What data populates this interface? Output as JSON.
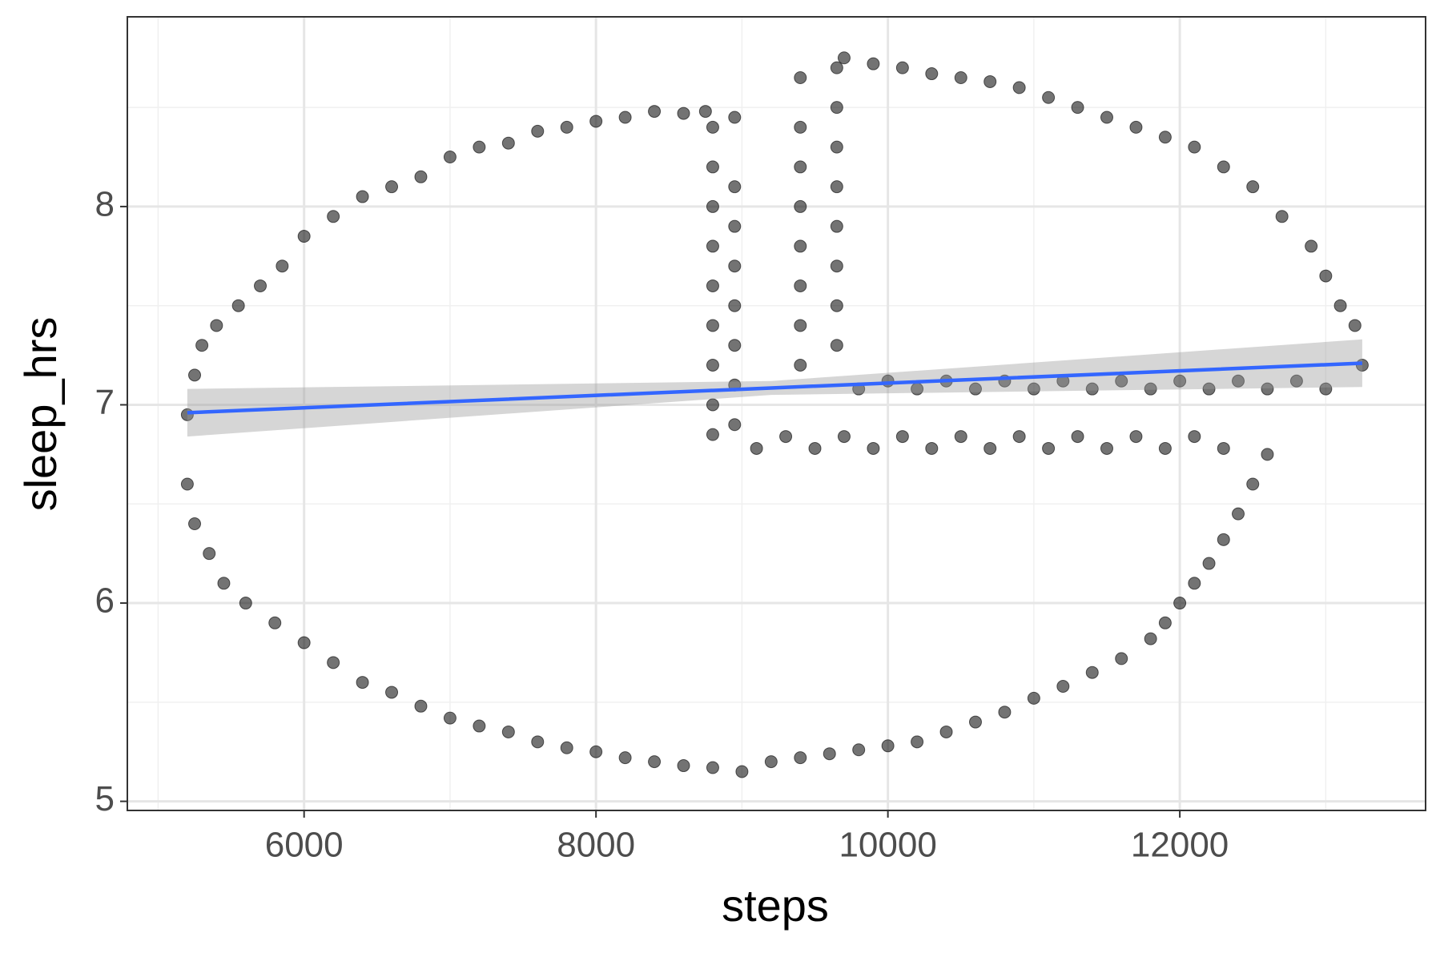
{
  "chart_data": {
    "type": "scatter",
    "x_label": "steps",
    "y_label": "sleep_hrs",
    "xlim": [
      4789,
      13684
    ],
    "ylim": [
      4.954,
      8.957
    ],
    "xticks": [
      6000,
      8000,
      10000,
      12000
    ],
    "yticks": [
      5,
      6,
      7,
      8
    ],
    "x_minor_ticks": [
      5000,
      7000,
      9000,
      11000,
      13000
    ],
    "y_minor_ticks": [
      5.5,
      6.5,
      7.5,
      8.5
    ],
    "grid": true,
    "point_color": "#000000",
    "x": [
      5200,
      5250,
      5300,
      5400,
      5550,
      5700,
      5850,
      6000,
      6200,
      6400,
      6600,
      6800,
      7000,
      7200,
      7400,
      7600,
      7800,
      8000,
      8200,
      8400,
      8600,
      8750,
      5200,
      5250,
      5350,
      5450,
      5600,
      5800,
      6000,
      6200,
      6400,
      6600,
      6800,
      7000,
      7200,
      7400,
      7600,
      7800,
      8000,
      8200,
      8400,
      8600,
      8800,
      9000,
      9200,
      9400,
      9600,
      9800,
      10000,
      10200,
      10400,
      10600,
      10800,
      11000,
      11200,
      11400,
      11600,
      11800,
      11900,
      12000,
      12100,
      12200,
      12300,
      12400,
      12500,
      12600,
      9700,
      9900,
      10100,
      10300,
      10500,
      10700,
      10900,
      11100,
      11300,
      11500,
      11700,
      11900,
      12100,
      12300,
      12500,
      12700,
      12900,
      13000,
      13100,
      13200,
      13250,
      8800,
      8800,
      8800,
      8800,
      8800,
      8800,
      8800,
      8800,
      8800,
      8950,
      8950,
      8950,
      8950,
      8950,
      8950,
      8950,
      8950,
      9400,
      9400,
      9400,
      9400,
      9400,
      9400,
      9400,
      9400,
      9650,
      9650,
      9650,
      9650,
      9650,
      9650,
      9650,
      9650,
      9100,
      9300,
      9500,
      9700,
      9900,
      10100,
      10300,
      10500,
      10700,
      10900,
      11100,
      11300,
      11500,
      11700,
      11900,
      12100,
      12300,
      9800,
      10000,
      10200,
      10400,
      10600,
      10800,
      11000,
      11200,
      11400,
      11600,
      11800,
      12000,
      12200,
      12400,
      12600,
      12800,
      13000
    ],
    "y": [
      6.95,
      7.15,
      7.3,
      7.4,
      7.5,
      7.6,
      7.7,
      7.85,
      7.95,
      8.05,
      8.1,
      8.15,
      8.25,
      8.3,
      8.32,
      8.38,
      8.4,
      8.43,
      8.45,
      8.48,
      8.47,
      8.48,
      6.6,
      6.4,
      6.25,
      6.1,
      6.0,
      5.9,
      5.8,
      5.7,
      5.6,
      5.55,
      5.48,
      5.42,
      5.38,
      5.35,
      5.3,
      5.27,
      5.25,
      5.22,
      5.2,
      5.18,
      5.17,
      5.15,
      5.2,
      5.22,
      5.24,
      5.26,
      5.28,
      5.3,
      5.35,
      5.4,
      5.45,
      5.52,
      5.58,
      5.65,
      5.72,
      5.82,
      5.9,
      6.0,
      6.1,
      6.2,
      6.32,
      6.45,
      6.6,
      6.75,
      8.75,
      8.72,
      8.7,
      8.67,
      8.65,
      8.63,
      8.6,
      8.55,
      8.5,
      8.45,
      8.4,
      8.35,
      8.3,
      8.2,
      8.1,
      7.95,
      7.8,
      7.65,
      7.5,
      7.4,
      7.2,
      8.4,
      8.2,
      8.0,
      7.8,
      7.6,
      7.4,
      7.2,
      7.0,
      6.85,
      8.45,
      8.1,
      7.9,
      7.7,
      7.5,
      7.3,
      7.1,
      6.9,
      8.65,
      8.4,
      8.2,
      8.0,
      7.8,
      7.6,
      7.4,
      7.2,
      8.7,
      8.5,
      8.3,
      8.1,
      7.9,
      7.7,
      7.5,
      7.3,
      6.78,
      6.84,
      6.78,
      6.84,
      6.78,
      6.84,
      6.78,
      6.84,
      6.78,
      6.84,
      6.78,
      6.84,
      6.78,
      6.84,
      6.78,
      6.84,
      6.78,
      7.08,
      7.12,
      7.08,
      7.12,
      7.08,
      7.12,
      7.08,
      7.12,
      7.08,
      7.12,
      7.08,
      7.12,
      7.08,
      7.12,
      7.08,
      7.12,
      7.08
    ],
    "trend": {
      "color": "#3366ff",
      "band_color": "#999999",
      "x": [
        5200,
        9200,
        13250
      ],
      "y": [
        6.96,
        7.085,
        7.21
      ],
      "lower": [
        6.84,
        7.05,
        7.09
      ],
      "upper": [
        7.08,
        7.12,
        7.33
      ]
    }
  }
}
